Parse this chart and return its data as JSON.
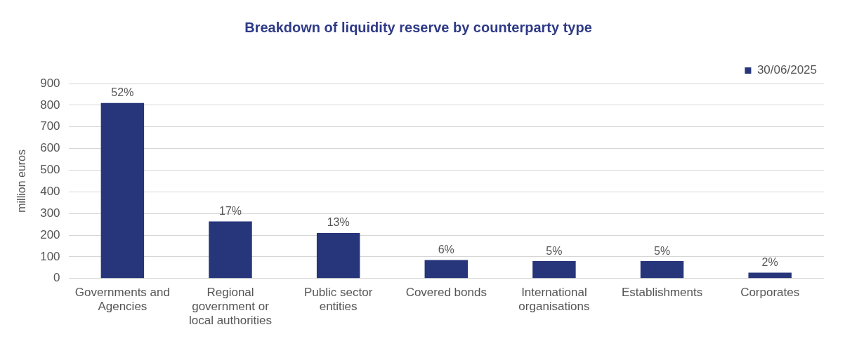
{
  "chart_data": {
    "type": "bar",
    "title": "Breakdown of liquidity reserve by counterparty type",
    "ylabel": "million euros",
    "categories": [
      "Governments and Agencies",
      "Regional government or local authorities",
      "Public sector entities",
      "Covered bonds",
      "International organisations",
      "Establishments",
      "Corporates"
    ],
    "series": [
      {
        "name": "30/06/2025",
        "color": "#27357a",
        "values": [
          810,
          263,
          210,
          85,
          80,
          80,
          27
        ]
      }
    ],
    "annotations": [
      {
        "text": "52%",
        "x": "Governments and Agencies",
        "y": 810
      },
      {
        "text": "17%",
        "x": "Regional government or local authorities",
        "y": 263
      },
      {
        "text": "13%",
        "x": "Public sector entities",
        "y": 210
      },
      {
        "text": "6%",
        "x": "Covered bonds",
        "y": 85
      },
      {
        "text": "5%",
        "x": "International organisations",
        "y": 80
      },
      {
        "text": "5%",
        "x": "Establishments",
        "y": 80
      },
      {
        "text": "2%",
        "x": "Corporates",
        "y": 27
      }
    ],
    "ylim": [
      0,
      900
    ],
    "yticks": [
      0,
      100,
      200,
      300,
      400,
      500,
      600,
      700,
      800,
      900
    ],
    "grid": "y",
    "legend": "top right"
  }
}
